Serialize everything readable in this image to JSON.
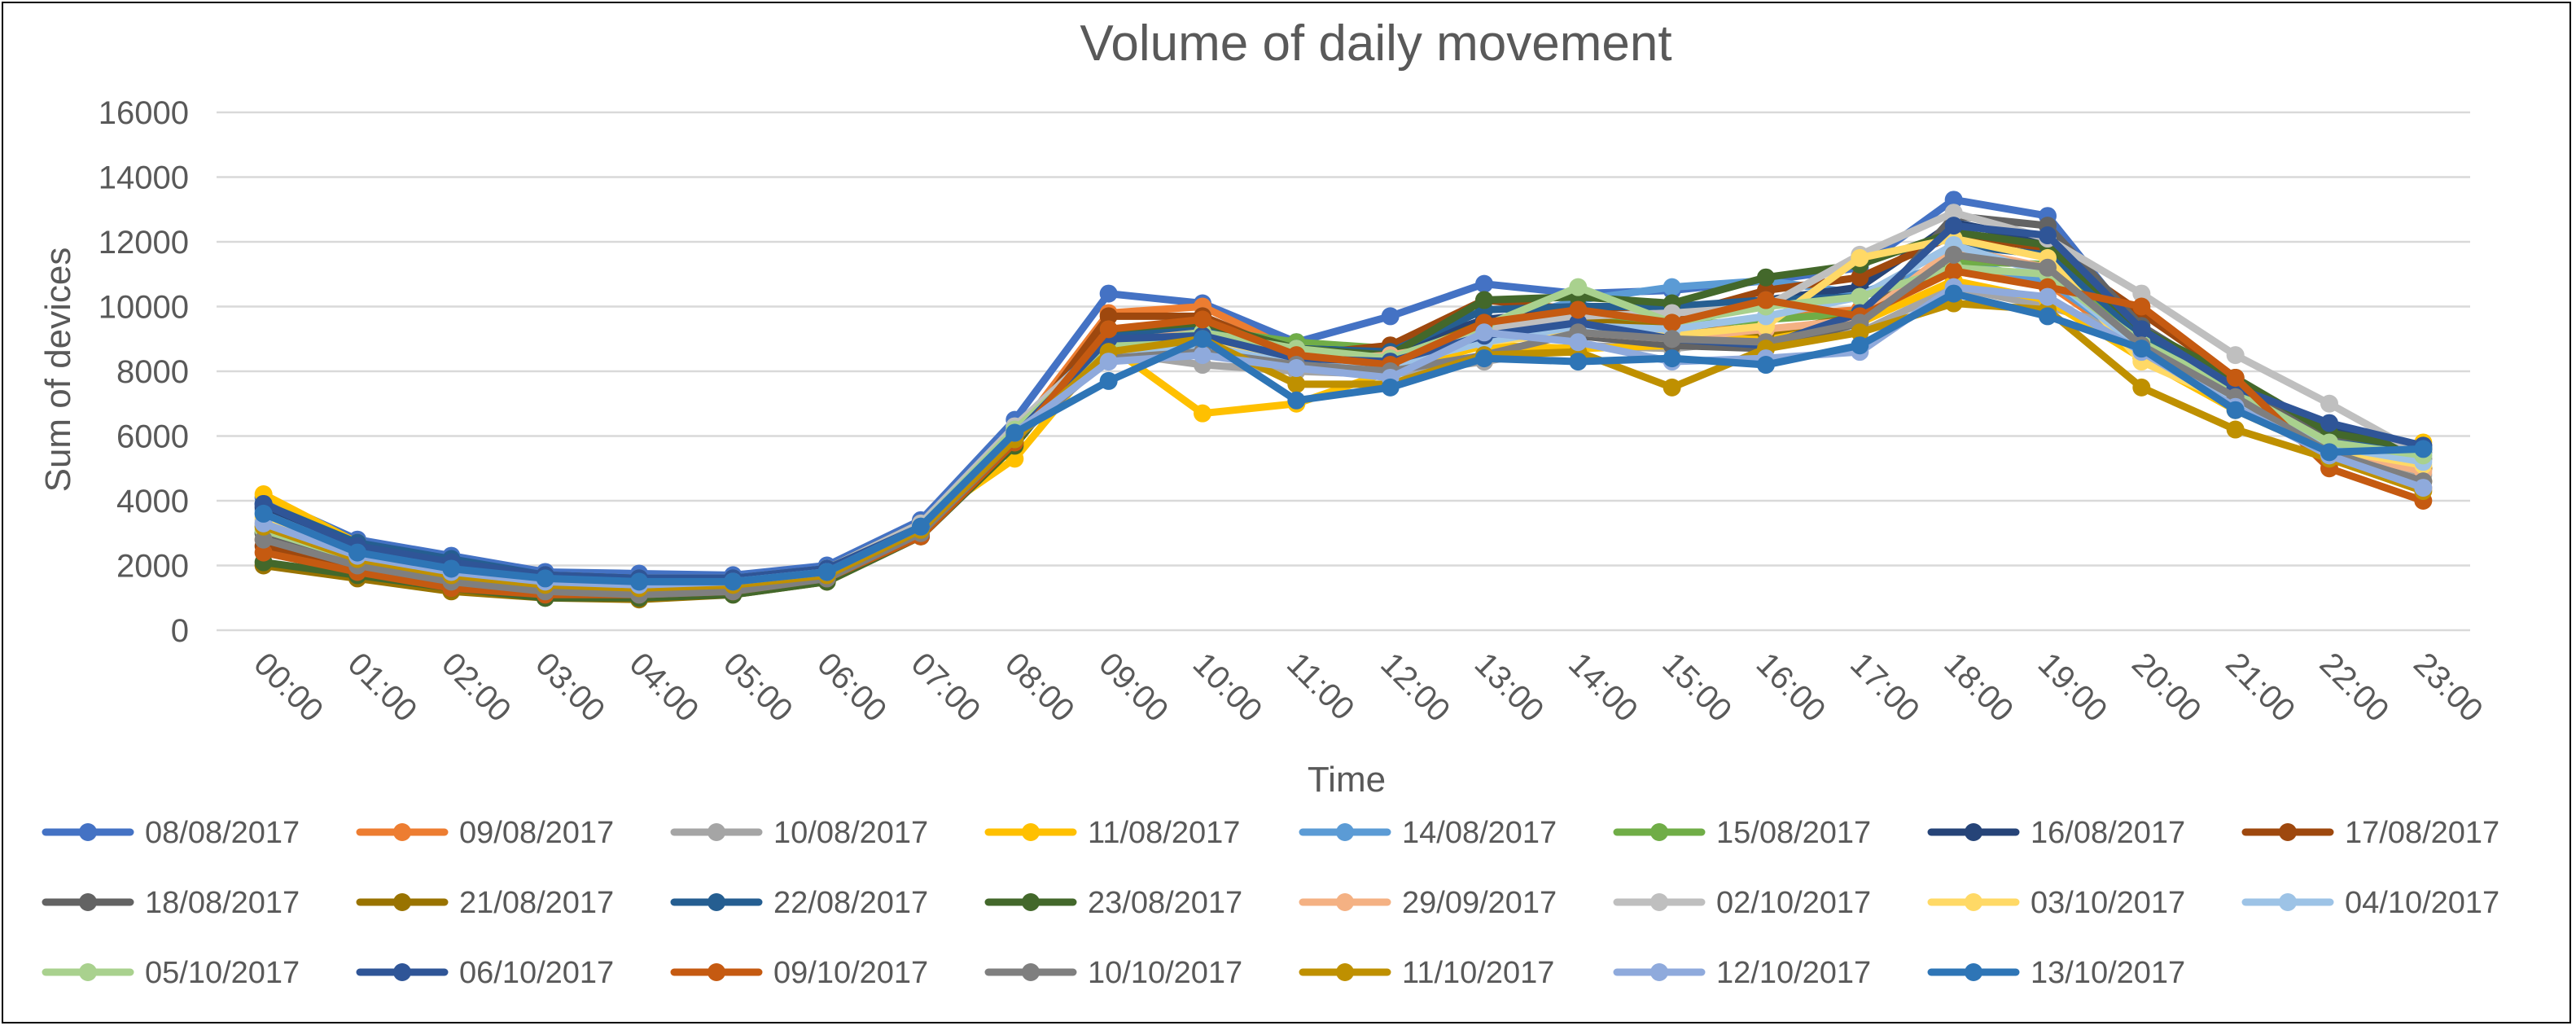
{
  "chart_data": {
    "type": "line",
    "title": "Volume of daily movement",
    "xlabel": "Time",
    "ylabel": "Sum of devices",
    "ylim": [
      0,
      16000
    ],
    "yticks": [
      0,
      2000,
      4000,
      6000,
      8000,
      10000,
      12000,
      14000,
      16000
    ],
    "grid": true,
    "legend_position": "bottom",
    "markers": true,
    "categories": [
      "00:00",
      "01:00",
      "02:00",
      "03:00",
      "04:00",
      "05:00",
      "06:00",
      "07:00",
      "08:00",
      "09:00",
      "10:00",
      "11:00",
      "12:00",
      "13:00",
      "14:00",
      "15:00",
      "16:00",
      "17:00",
      "18:00",
      "19:00",
      "20:00",
      "21:00",
      "22:00",
      "23:00"
    ],
    "series": [
      {
        "name": "08/08/2017",
        "color": "#4472C4",
        "values": [
          4100,
          2800,
          2300,
          1800,
          1750,
          1700,
          2000,
          3400,
          6500,
          10400,
          10100,
          8900,
          9700,
          10700,
          10400,
          10500,
          10800,
          11200,
          13300,
          12800,
          9200,
          7500,
          5800,
          5600
        ]
      },
      {
        "name": "09/08/2017",
        "color": "#ED7D31",
        "values": [
          2800,
          2000,
          1500,
          1300,
          1200,
          1350,
          1700,
          3100,
          6000,
          9800,
          10000,
          8600,
          8300,
          9300,
          9800,
          9200,
          9700,
          9900,
          11400,
          10700,
          8700,
          7200,
          5300,
          4400
        ]
      },
      {
        "name": "10/08/2017",
        "color": "#A5A5A5",
        "values": [
          3200,
          2200,
          1700,
          1400,
          1300,
          1400,
          1800,
          3200,
          6100,
          8600,
          8200,
          8000,
          7900,
          8300,
          8800,
          8700,
          9000,
          9200,
          10600,
          10000,
          9200,
          7300,
          5600,
          4800
        ]
      },
      {
        "name": "11/08/2017",
        "color": "#FFC000",
        "values": [
          4200,
          2700,
          2100,
          1700,
          1600,
          1600,
          1900,
          3300,
          5300,
          8800,
          6700,
          7000,
          8000,
          8800,
          8700,
          8800,
          9100,
          9500,
          10800,
          10200,
          8400,
          6800,
          5500,
          5800
        ]
      },
      {
        "name": "14/08/2017",
        "color": "#5B9BD5",
        "values": [
          3700,
          2500,
          2000,
          1600,
          1500,
          1500,
          1800,
          3200,
          6300,
          9000,
          9700,
          8500,
          8000,
          9400,
          10200,
          10600,
          10800,
          10400,
          11400,
          10800,
          8800,
          7200,
          5600,
          5600
        ]
      },
      {
        "name": "15/08/2017",
        "color": "#70AD47",
        "values": [
          3000,
          2100,
          1600,
          1300,
          1200,
          1300,
          1700,
          3100,
          5900,
          9200,
          9300,
          8900,
          8700,
          9500,
          9900,
          9400,
          9600,
          9800,
          11400,
          11300,
          8900,
          7300,
          5700,
          5000
        ]
      },
      {
        "name": "16/08/2017",
        "color": "#264478",
        "values": [
          3800,
          2600,
          2100,
          1700,
          1600,
          1600,
          1900,
          3300,
          6200,
          9100,
          9500,
          8700,
          8600,
          9600,
          9900,
          9600,
          10200,
          10600,
          12600,
          12000,
          9200,
          7400,
          6300,
          5700
        ]
      },
      {
        "name": "17/08/2017",
        "color": "#9E480E",
        "values": [
          2600,
          1900,
          1400,
          1100,
          1050,
          1200,
          1600,
          3000,
          5800,
          9700,
          9700,
          8500,
          8800,
          10200,
          9900,
          9700,
          10500,
          10900,
          12200,
          11800,
          9800,
          7800,
          5900,
          5000
        ]
      },
      {
        "name": "18/08/2017",
        "color": "#636363",
        "values": [
          3000,
          2100,
          1600,
          1300,
          1200,
          1300,
          1700,
          3100,
          6100,
          8700,
          9000,
          8600,
          8500,
          9100,
          9100,
          8800,
          8700,
          9500,
          12800,
          12500,
          9400,
          7600,
          6000,
          5300
        ]
      },
      {
        "name": "21/08/2017",
        "color": "#997300",
        "values": [
          2000,
          1600,
          1200,
          1000,
          950,
          1100,
          1500,
          2900,
          5800,
          8900,
          9500,
          8600,
          8300,
          9500,
          9600,
          9300,
          9200,
          9700,
          11600,
          11200,
          8600,
          7000,
          5500,
          4600
        ]
      },
      {
        "name": "22/08/2017",
        "color": "#255E91",
        "values": [
          3900,
          2700,
          2200,
          1700,
          1600,
          1600,
          1900,
          3300,
          6200,
          9100,
          9400,
          8700,
          8600,
          9900,
          10000,
          10000,
          10200,
          10300,
          11900,
          11600,
          9100,
          7300,
          5800,
          5500
        ]
      },
      {
        "name": "23/08/2017",
        "color": "#43682B",
        "values": [
          2100,
          1700,
          1300,
          1000,
          1000,
          1100,
          1500,
          2900,
          5700,
          9300,
          9500,
          8700,
          8500,
          10200,
          10300,
          10100,
          10900,
          11300,
          12300,
          11900,
          9300,
          7800,
          6100,
          5600
        ]
      },
      {
        "name": "29/09/2017",
        "color": "#F4B183",
        "values": [
          3300,
          2300,
          1800,
          1500,
          1400,
          1400,
          1800,
          3200,
          6100,
          8900,
          9200,
          8300,
          8500,
          9000,
          9200,
          9000,
          9300,
          9600,
          11800,
          11200,
          8600,
          7000,
          5600,
          4900
        ]
      },
      {
        "name": "02/10/2017",
        "color": "#BFBFBF",
        "values": [
          3400,
          2300,
          1800,
          1500,
          1400,
          1500,
          1900,
          3300,
          6300,
          9000,
          9000,
          8400,
          8300,
          9300,
          9700,
          9800,
          10000,
          11600,
          12900,
          12100,
          10400,
          8500,
          7000,
          5400
        ]
      },
      {
        "name": "03/10/2017",
        "color": "#FFD966",
        "values": [
          3500,
          2400,
          1900,
          1500,
          1400,
          1500,
          1800,
          3200,
          6000,
          8900,
          9100,
          8300,
          8200,
          8900,
          9200,
          9100,
          9400,
          11500,
          12100,
          11500,
          8300,
          7000,
          5600,
          5100
        ]
      },
      {
        "name": "04/10/2017",
        "color": "#9DC3E6",
        "values": [
          3600,
          2400,
          1900,
          1600,
          1500,
          1500,
          1800,
          3200,
          6200,
          8600,
          8800,
          8200,
          8200,
          8900,
          9400,
          9300,
          9700,
          10300,
          11900,
          11000,
          8700,
          7100,
          5700,
          5200
        ]
      },
      {
        "name": "05/10/2017",
        "color": "#A9D18E",
        "values": [
          3100,
          2200,
          1700,
          1400,
          1300,
          1400,
          1900,
          3200,
          6200,
          8800,
          9200,
          8700,
          8400,
          9400,
          10600,
          9500,
          10000,
          10300,
          11200,
          11000,
          8900,
          7400,
          5800,
          5400
        ]
      },
      {
        "name": "06/10/2017",
        "color": "#2F5597",
        "values": [
          3900,
          2600,
          2100,
          1700,
          1600,
          1600,
          1900,
          3200,
          6000,
          9000,
          9100,
          8400,
          8300,
          9100,
          9500,
          9000,
          8800,
          9800,
          12500,
          12200,
          9300,
          7500,
          6400,
          5700
        ]
      },
      {
        "name": "09/10/2017",
        "color": "#C55A11",
        "values": [
          2400,
          1800,
          1300,
          1100,
          1100,
          1200,
          1600,
          2900,
          5800,
          9300,
          9600,
          8500,
          8200,
          9500,
          9900,
          9500,
          10200,
          9700,
          11100,
          10600,
          10000,
          7800,
          5000,
          4000
        ]
      },
      {
        "name": "10/10/2017",
        "color": "#7F7F7F",
        "values": [
          2800,
          2000,
          1500,
          1200,
          1100,
          1200,
          1600,
          3000,
          5900,
          8400,
          8600,
          8200,
          8000,
          8500,
          9200,
          9000,
          8900,
          9500,
          11600,
          11200,
          8800,
          7200,
          5500,
          4600
        ]
      },
      {
        "name": "11/10/2017",
        "color": "#BF9000",
        "values": [
          3200,
          2200,
          1700,
          1400,
          1300,
          1400,
          1700,
          3100,
          5900,
          8600,
          9000,
          7600,
          7600,
          8500,
          8600,
          7500,
          8700,
          9200,
          10100,
          9900,
          7500,
          6200,
          5300,
          4300
        ]
      },
      {
        "name": "12/10/2017",
        "color": "#8FAADC",
        "values": [
          3300,
          2300,
          1800,
          1500,
          1400,
          1500,
          1800,
          3200,
          6100,
          8300,
          8500,
          8100,
          7800,
          9200,
          8900,
          8300,
          8400,
          8600,
          10600,
          10300,
          8600,
          6900,
          5400,
          4400
        ]
      },
      {
        "name": "13/10/2017",
        "color": "#2E75B6",
        "values": [
          3600,
          2400,
          1900,
          1600,
          1500,
          1500,
          1800,
          3200,
          6100,
          7700,
          9000,
          7100,
          7500,
          8400,
          8300,
          8400,
          8200,
          8800,
          10400,
          9700,
          8700,
          6800,
          5500,
          5600
        ]
      }
    ]
  }
}
